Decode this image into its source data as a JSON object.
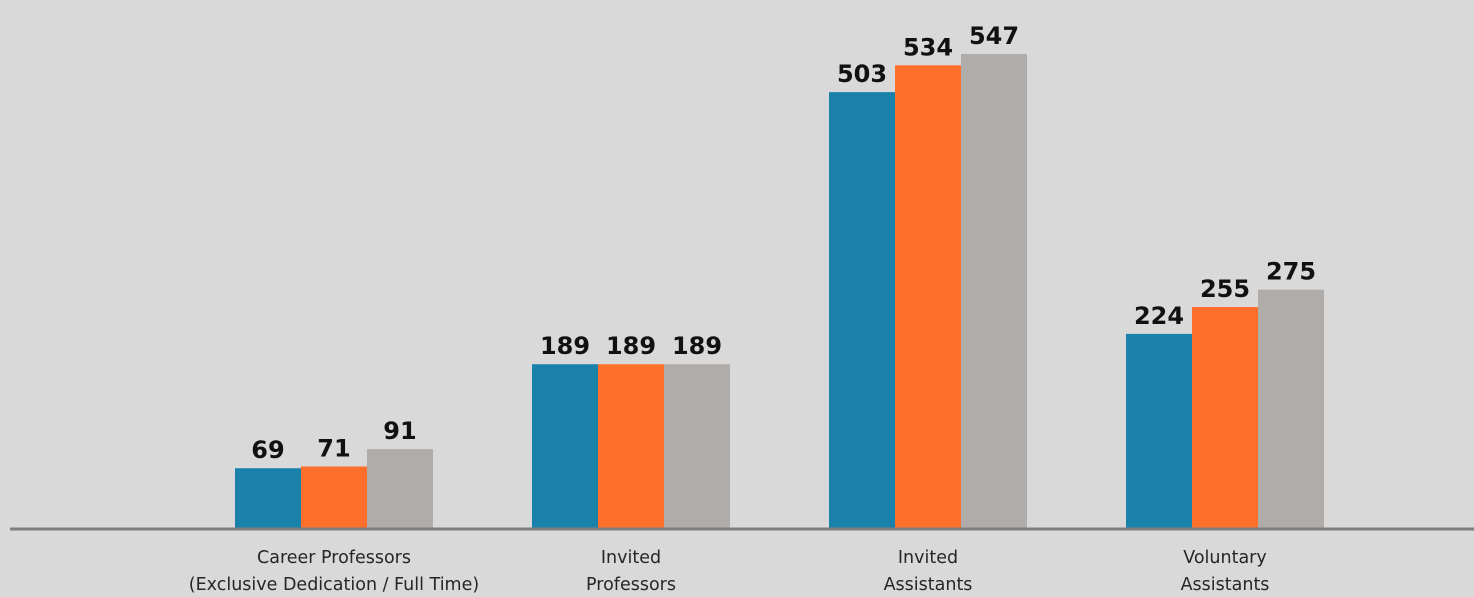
{
  "chart_data": {
    "type": "bar",
    "categories": [
      [
        "Career Professors",
        "(Exclusive Dedication / Full Time)"
      ],
      [
        "Invited",
        "Professors"
      ],
      [
        "Invited",
        "Assistants"
      ],
      [
        "Voluntary",
        "Assistants"
      ]
    ],
    "series": [
      {
        "values": [
          69,
          189,
          503,
          224
        ],
        "color": "#1a81aa"
      },
      {
        "values": [
          71,
          189,
          534,
          255
        ],
        "color": "#fe6f2c"
      },
      {
        "values": [
          91,
          189,
          547,
          275
        ],
        "color": "#b0acaa"
      }
    ],
    "ylim": [
      0,
      547
    ],
    "grid": false,
    "legend": "none",
    "baseline_color": "#7f7f7f"
  }
}
